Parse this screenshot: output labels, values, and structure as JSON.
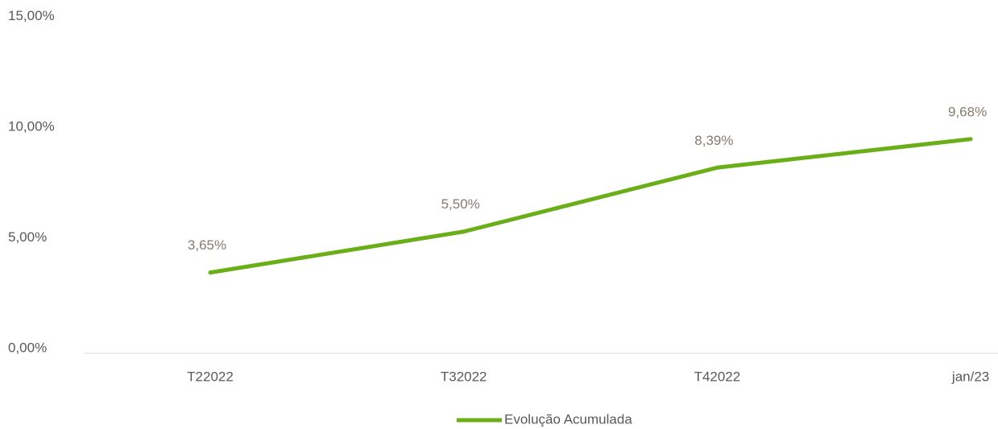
{
  "chart_data": {
    "type": "line",
    "categories": [
      "T22022",
      "T32022",
      "T42022",
      "jan/23"
    ],
    "series": [
      {
        "name": "Evolução Acumulada",
        "color": "#6aaf1a",
        "values": [
          3.65,
          5.5,
          8.39,
          9.68
        ],
        "value_labels": [
          "3,65%",
          "5,50%",
          "8,39%",
          "9,68%"
        ]
      }
    ],
    "ylim": [
      0,
      15
    ],
    "yticks": [
      {
        "value": 0,
        "label": "0,00%"
      },
      {
        "value": 5,
        "label": "5,00%"
      },
      {
        "value": 10,
        "label": "10,00%"
      },
      {
        "value": 15,
        "label": "15,00%"
      }
    ],
    "grid": false,
    "legend": "bottom"
  }
}
